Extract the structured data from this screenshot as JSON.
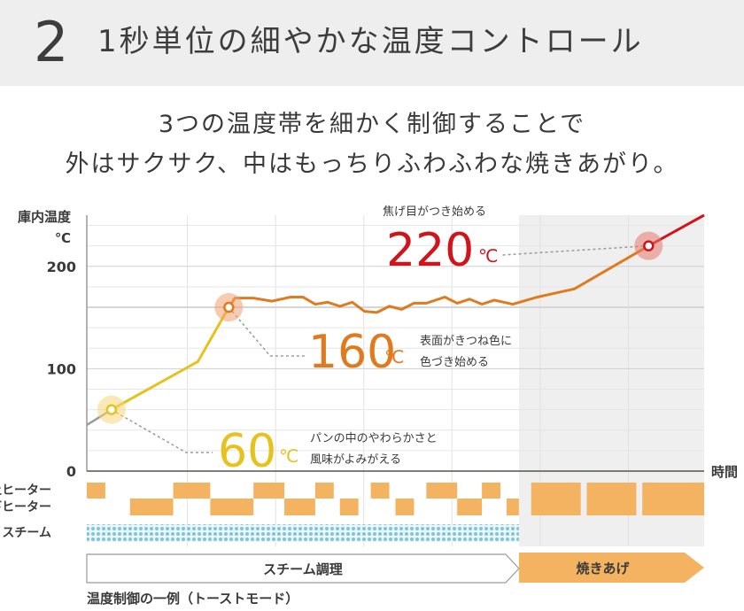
{
  "header": {
    "number": "2",
    "title": "1秒単位の細やかな温度コントロール"
  },
  "subtitle": {
    "line1": "3つの温度帯を細かく制御することで",
    "line2": "外はサクサク、中はもっちりふわふわな焼きあがり。"
  },
  "colors": {
    "steam_phase_line": "#e6c21e",
    "bake_phase_line": "#e07a1f",
    "final_line": "#d0141b",
    "heater_block": "#f4b361",
    "steam_block": "#7fc4d8",
    "bake_shade": "#efefef",
    "label_60": "#e6c21e",
    "label_160": "#e07a1f",
    "label_220": "#d0141b"
  },
  "chart_data": {
    "type": "line",
    "title": "温度制御の一例（トーストモード）",
    "ylabel": "庫内温度",
    "yunit": "℃",
    "xlabel": "時間",
    "ylim": [
      0,
      250
    ],
    "y_ticks": [
      0,
      100,
      200
    ],
    "x_range": [
      0,
      100
    ],
    "series": [
      {
        "name": "庫内温度",
        "points": [
          [
            0,
            45
          ],
          [
            4,
            60
          ],
          [
            18,
            107
          ],
          [
            23,
            160
          ],
          [
            24,
            169
          ],
          [
            27,
            169
          ],
          [
            30,
            166
          ],
          [
            33,
            170
          ],
          [
            35,
            170
          ],
          [
            37,
            163
          ],
          [
            39,
            165
          ],
          [
            41,
            161
          ],
          [
            43,
            165
          ],
          [
            45,
            156
          ],
          [
            47,
            155
          ],
          [
            49,
            161
          ],
          [
            51,
            158
          ],
          [
            53,
            164
          ],
          [
            55,
            164
          ],
          [
            58,
            170
          ],
          [
            60,
            164
          ],
          [
            62,
            168
          ],
          [
            64,
            163
          ],
          [
            66,
            167
          ],
          [
            69,
            163
          ],
          [
            73,
            170
          ],
          [
            79,
            178
          ],
          [
            91,
            220
          ],
          [
            100,
            250
          ]
        ]
      }
    ],
    "annotations": [
      {
        "name": "60",
        "value": "60",
        "unit": "℃",
        "desc_line1": "パンの中のやわらかさと",
        "desc_line2": "風味がよみがえる",
        "x": 4,
        "y": 60
      },
      {
        "name": "160",
        "value": "160",
        "unit": "℃",
        "desc_line1": "表面がきつね色に",
        "desc_line2": "色づき始める",
        "x": 23,
        "y": 160
      },
      {
        "name": "220",
        "value": "220",
        "unit": "℃",
        "desc_line1": "焦げ目がつき始める",
        "x": 91,
        "y": 220
      }
    ],
    "heater_rows": [
      {
        "label": "上ヒーター",
        "on_intervals": [
          [
            0,
            3
          ],
          [
            14,
            20
          ],
          [
            27,
            32
          ],
          [
            37,
            40
          ],
          [
            46,
            49
          ],
          [
            55,
            60
          ],
          [
            64,
            67
          ],
          [
            72,
            80
          ],
          [
            81,
            89
          ],
          [
            90,
            100
          ]
        ]
      },
      {
        "label": "下ヒーター",
        "on_intervals": [
          [
            7,
            14
          ],
          [
            20,
            27
          ],
          [
            32,
            37
          ],
          [
            41,
            44
          ],
          [
            50,
            53
          ],
          [
            60,
            64
          ],
          [
            68,
            70
          ],
          [
            72,
            80
          ],
          [
            81,
            89
          ],
          [
            90,
            100
          ]
        ]
      },
      {
        "label": "スチーム",
        "on_intervals": [
          [
            0,
            70
          ]
        ]
      }
    ],
    "phases": [
      {
        "label": "スチーム調理",
        "from": 0,
        "to": 70
      },
      {
        "label": "焼きあげ",
        "from": 70,
        "to": 100
      }
    ]
  },
  "caption": "温度制御の一例（トーストモード）"
}
